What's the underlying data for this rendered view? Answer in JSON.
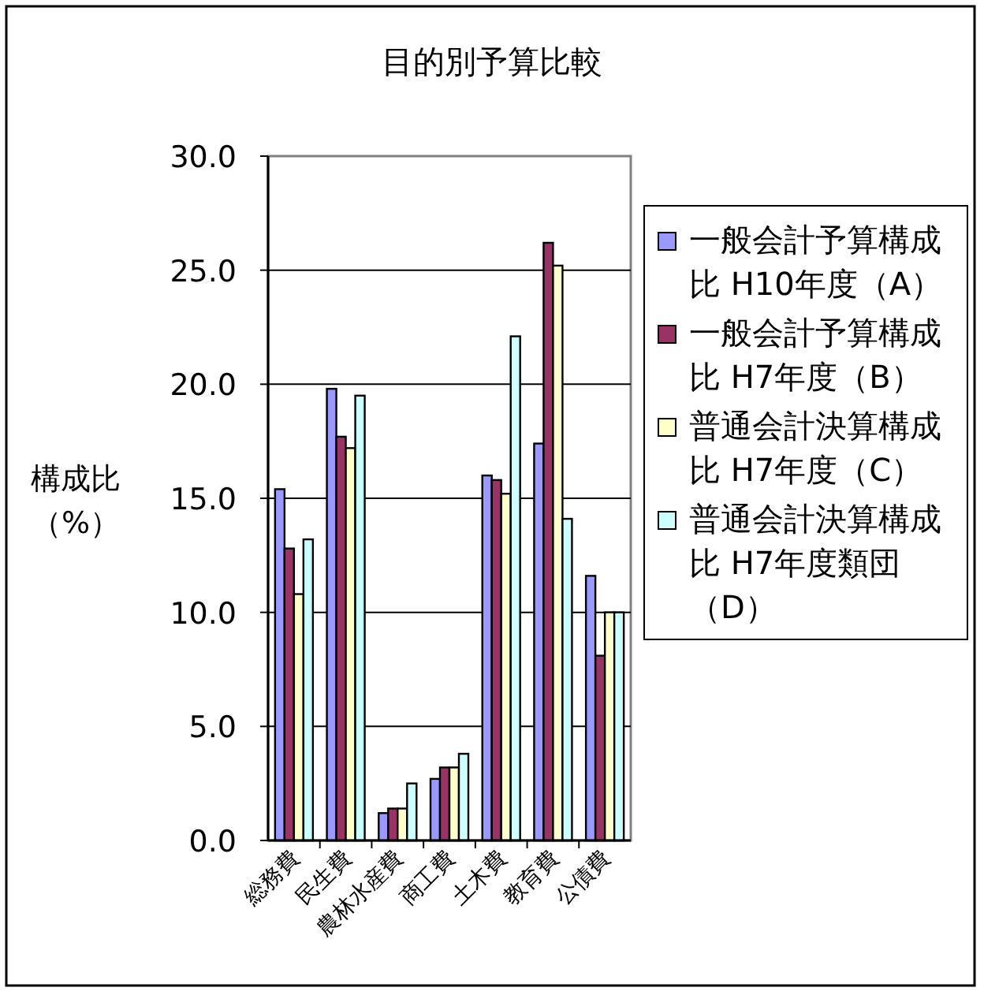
{
  "chart_data": {
    "type": "bar",
    "title": "目的別予算比較",
    "ylabel": "構成比（%）",
    "categories": [
      "総務費",
      "民生費",
      "農林水産費",
      "商工費",
      "土木費",
      "教育費",
      "公債費"
    ],
    "series": [
      {
        "name": "一般会計予算構成比 H10年度（A）",
        "color": "#9999ff",
        "values": [
          15.4,
          19.8,
          1.2,
          2.7,
          16.0,
          17.4,
          11.6
        ]
      },
      {
        "name": "一般会計予算構成比 H7年度（B）",
        "color": "#993366",
        "values": [
          12.8,
          17.7,
          1.4,
          3.2,
          15.8,
          26.2,
          8.1
        ]
      },
      {
        "name": "普通会計決算構成比 H7年度（C）",
        "color": "#ffffcc",
        "values": [
          10.8,
          17.2,
          1.4,
          3.2,
          15.2,
          25.2,
          10.0
        ]
      },
      {
        "name": "普通会計決算構成比 H7年度類団（D）",
        "color": "#ccffff",
        "values": [
          13.2,
          19.5,
          2.5,
          3.8,
          22.1,
          14.1,
          10.0
        ]
      }
    ],
    "ylim": [
      0,
      30
    ],
    "yticks": [
      {
        "value": 0,
        "label": "0.0"
      },
      {
        "value": 5,
        "label": "5.0"
      },
      {
        "value": 10,
        "label": "10.0"
      },
      {
        "value": 15,
        "label": "15.0"
      },
      {
        "value": 20,
        "label": "20.0"
      },
      {
        "value": 25,
        "label": "25.0"
      },
      {
        "value": 30,
        "label": "30.0"
      }
    ],
    "grid": "y",
    "legend": "right"
  }
}
